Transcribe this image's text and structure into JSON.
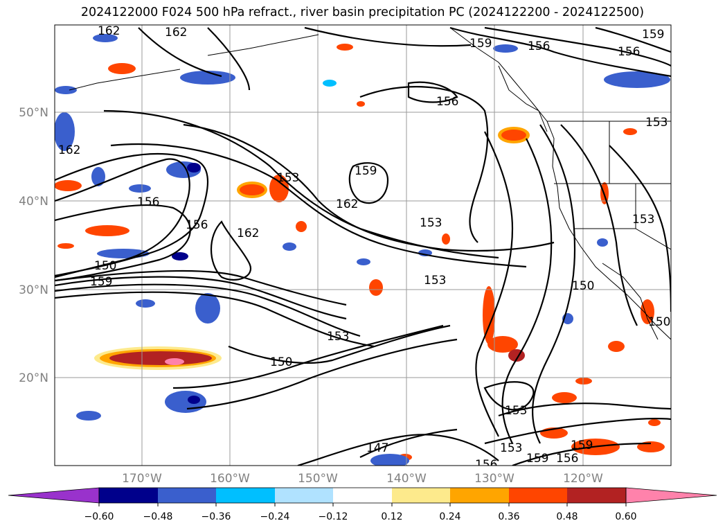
{
  "title": "2024122000 F024 500 hPa refract., river basin precipitation PC (2024122200 - 2024122500)",
  "map": {
    "latitude_labels": [
      "50°N",
      "40°N",
      "30°N",
      "20°N"
    ],
    "longitude_labels": [
      "170°W",
      "160°W",
      "150°W",
      "140°W",
      "130°W",
      "120°W"
    ],
    "contour_labels": [
      "162",
      "162",
      "159",
      "156",
      "156",
      "159",
      "156",
      "162",
      "153",
      "153",
      "156",
      "162",
      "159",
      "162",
      "156",
      "150",
      "153",
      "159",
      "153",
      "150",
      "153",
      "150",
      "147",
      "153",
      "153",
      "159",
      "156",
      "156",
      "159",
      "150",
      "153"
    ],
    "contour_color": "#000000",
    "grid_color": "#9a9a9a",
    "coastline_color": "#000000"
  },
  "colorbar": {
    "ticks": [
      "−0.60",
      "−0.48",
      "−0.36",
      "−0.24",
      "−0.12",
      "0.12",
      "0.24",
      "0.36",
      "0.48",
      "0.60"
    ],
    "colors": [
      "#9932cc",
      "#00008b",
      "#3a5fcd",
      "#00bfff",
      "#b0e2ff",
      "#ffffff",
      "#fdea8c",
      "#ffa500",
      "#ff4500",
      "#b22222",
      "#ff82ab"
    ]
  }
}
